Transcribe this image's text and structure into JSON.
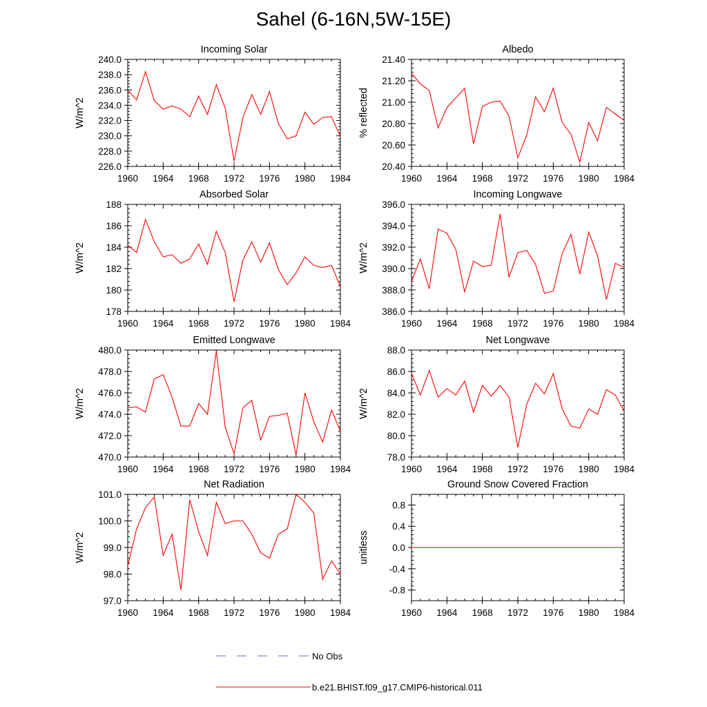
{
  "figure": {
    "title": "Sahel (6-16N,5W-15E)"
  },
  "legend": [
    {
      "label": "No Obs",
      "color": "#5a6fb8",
      "dash": true
    },
    {
      "label": "b.e21.BHIST.f09_g17.CMIP6-historical.011",
      "color": "#ff0000",
      "dash": false
    }
  ],
  "chart_data": [
    {
      "type": "line",
      "title": "Incoming Solar",
      "xlabel": "",
      "ylabel": "W/m^2",
      "xlim": [
        1960,
        1984
      ],
      "ylim": [
        226,
        240
      ],
      "xticks": [
        1960,
        1964,
        1968,
        1972,
        1976,
        1980,
        1984
      ],
      "yticks": [
        "226.0",
        "228.0",
        "230.0",
        "232.0",
        "234.0",
        "236.0",
        "238.0",
        "240.0"
      ],
      "series": [
        {
          "color": "#ff0000",
          "x": [
            1960,
            1961,
            1962,
            1963,
            1964,
            1965,
            1966,
            1967,
            1968,
            1969,
            1970,
            1971,
            1972,
            1973,
            1974,
            1975,
            1976,
            1977,
            1978,
            1979,
            1980,
            1981,
            1982,
            1983,
            1984
          ],
          "values": [
            236.0,
            234.7,
            238.4,
            234.6,
            233.5,
            233.9,
            233.5,
            232.5,
            235.2,
            232.8,
            236.7,
            233.6,
            226.7,
            232.4,
            235.4,
            232.8,
            235.8,
            231.6,
            229.6,
            230.0,
            233.1,
            231.5,
            232.4,
            232.5,
            229.9
          ]
        }
      ]
    },
    {
      "type": "line",
      "title": "Albedo",
      "xlabel": "",
      "ylabel": "% reflected",
      "xlim": [
        1960,
        1984
      ],
      "ylim": [
        20.4,
        21.4
      ],
      "xticks": [
        1960,
        1964,
        1968,
        1972,
        1976,
        1980,
        1984
      ],
      "yticks": [
        "20.40",
        "20.60",
        "20.80",
        "21.00",
        "21.20",
        "21.40"
      ],
      "series": [
        {
          "color": "#ff0000",
          "x": [
            1960,
            1961,
            1962,
            1963,
            1964,
            1965,
            1966,
            1967,
            1968,
            1969,
            1970,
            1971,
            1972,
            1973,
            1974,
            1975,
            1976,
            1977,
            1978,
            1979,
            1980,
            1981,
            1982,
            1983,
            1984
          ],
          "values": [
            21.27,
            21.17,
            21.11,
            20.76,
            20.95,
            21.04,
            21.13,
            20.61,
            20.96,
            21.0,
            21.01,
            20.87,
            20.48,
            20.69,
            21.05,
            20.91,
            21.13,
            20.81,
            20.7,
            20.44,
            20.81,
            20.64,
            20.95,
            20.89,
            20.83
          ]
        }
      ]
    },
    {
      "type": "line",
      "title": "Absorbed Solar",
      "xlabel": "",
      "ylabel": "W/m^2",
      "xlim": [
        1960,
        1984
      ],
      "ylim": [
        178,
        188
      ],
      "xticks": [
        1960,
        1964,
        1968,
        1972,
        1976,
        1980,
        1984
      ],
      "yticks": [
        "178",
        "180",
        "182",
        "184",
        "186",
        "188"
      ],
      "series": [
        {
          "color": "#ff0000",
          "x": [
            1960,
            1961,
            1962,
            1963,
            1964,
            1965,
            1966,
            1967,
            1968,
            1969,
            1970,
            1971,
            1972,
            1973,
            1974,
            1975,
            1976,
            1977,
            1978,
            1979,
            1980,
            1981,
            1982,
            1983,
            1984
          ],
          "values": [
            184.2,
            183.5,
            186.6,
            184.5,
            183.1,
            183.3,
            182.5,
            182.9,
            184.3,
            182.4,
            185.5,
            183.5,
            178.9,
            182.8,
            184.5,
            182.6,
            184.4,
            181.9,
            180.5,
            181.6,
            183.1,
            182.3,
            182.1,
            182.3,
            180.3
          ]
        }
      ]
    },
    {
      "type": "line",
      "title": "Incoming Longwave",
      "xlabel": "",
      "ylabel": "W/m^2",
      "xlim": [
        1960,
        1984
      ],
      "ylim": [
        386,
        396
      ],
      "xticks": [
        1960,
        1964,
        1968,
        1972,
        1976,
        1980,
        1984
      ],
      "yticks": [
        "386.0",
        "388.0",
        "390.0",
        "392.0",
        "394.0",
        "396.0"
      ],
      "series": [
        {
          "color": "#ff0000",
          "x": [
            1960,
            1961,
            1962,
            1963,
            1964,
            1965,
            1966,
            1967,
            1968,
            1969,
            1970,
            1971,
            1972,
            1973,
            1974,
            1975,
            1976,
            1977,
            1978,
            1979,
            1980,
            1981,
            1982,
            1983,
            1984
          ],
          "values": [
            388.8,
            390.9,
            388.1,
            393.7,
            393.3,
            391.8,
            387.8,
            390.7,
            390.2,
            390.3,
            395.1,
            389.2,
            391.5,
            391.7,
            390.4,
            387.7,
            387.9,
            391.4,
            393.2,
            389.5,
            393.4,
            391.2,
            387.1,
            390.5,
            390.1
          ]
        }
      ]
    },
    {
      "type": "line",
      "title": "Emitted Longwave",
      "xlabel": "",
      "ylabel": "W/m^2",
      "xlim": [
        1960,
        1984
      ],
      "ylim": [
        470,
        480
      ],
      "xticks": [
        1960,
        1964,
        1968,
        1972,
        1976,
        1980,
        1984
      ],
      "yticks": [
        "470.0",
        "472.0",
        "474.0",
        "476.0",
        "478.0",
        "480.0"
      ],
      "series": [
        {
          "color": "#ff0000",
          "x": [
            1960,
            1961,
            1962,
            1963,
            1964,
            1965,
            1966,
            1967,
            1968,
            1969,
            1970,
            1971,
            1972,
            1973,
            1974,
            1975,
            1976,
            1977,
            1978,
            1979,
            1980,
            1981,
            1982,
            1983,
            1984
          ],
          "values": [
            474.6,
            474.7,
            474.2,
            477.3,
            477.7,
            475.6,
            472.9,
            472.9,
            475.0,
            474.0,
            479.9,
            472.8,
            470.3,
            474.6,
            475.3,
            471.6,
            473.8,
            473.9,
            474.1,
            470.2,
            476.0,
            473.3,
            471.4,
            474.4,
            472.4
          ]
        }
      ]
    },
    {
      "type": "line",
      "title": "Net Longwave",
      "xlabel": "",
      "ylabel": "W/m^2",
      "xlim": [
        1960,
        1984
      ],
      "ylim": [
        78,
        88
      ],
      "xticks": [
        1960,
        1964,
        1968,
        1972,
        1976,
        1980,
        1984
      ],
      "yticks": [
        "78.0",
        "80.0",
        "82.0",
        "84.0",
        "86.0",
        "88.0"
      ],
      "series": [
        {
          "color": "#ff0000",
          "x": [
            1960,
            1961,
            1962,
            1963,
            1964,
            1965,
            1966,
            1967,
            1968,
            1969,
            1970,
            1971,
            1972,
            1973,
            1974,
            1975,
            1976,
            1977,
            1978,
            1979,
            1980,
            1981,
            1982,
            1983,
            1984
          ],
          "values": [
            85.8,
            83.8,
            86.1,
            83.6,
            84.4,
            83.8,
            85.1,
            82.2,
            84.7,
            83.7,
            84.7,
            83.6,
            78.9,
            82.9,
            84.9,
            83.9,
            85.8,
            82.5,
            80.9,
            80.7,
            82.5,
            82.0,
            84.3,
            83.8,
            82.3
          ]
        }
      ]
    },
    {
      "type": "line",
      "title": "Net Radiation",
      "xlabel": "",
      "ylabel": "W/m^2",
      "xlim": [
        1960,
        1984
      ],
      "ylim": [
        97,
        101
      ],
      "xticks": [
        1960,
        1964,
        1968,
        1972,
        1976,
        1980,
        1984
      ],
      "yticks": [
        "97.0",
        "98.0",
        "99.0",
        "100.0",
        "101.0"
      ],
      "series": [
        {
          "color": "#ff0000",
          "x": [
            1960,
            1961,
            1962,
            1963,
            1964,
            1965,
            1966,
            1967,
            1968,
            1969,
            1970,
            1971,
            1972,
            1973,
            1974,
            1975,
            1976,
            1977,
            1978,
            1979,
            1980,
            1981,
            1982,
            1983,
            1984
          ],
          "values": [
            98.3,
            99.7,
            100.5,
            100.9,
            98.7,
            99.5,
            97.4,
            100.8,
            99.6,
            98.7,
            100.7,
            99.9,
            100.0,
            100.0,
            99.5,
            98.8,
            98.6,
            99.5,
            99.7,
            101.0,
            100.7,
            100.3,
            97.8,
            98.5,
            98.0
          ]
        }
      ]
    },
    {
      "type": "line",
      "title": "Ground Snow Covered Fraction",
      "xlabel": "",
      "ylabel": "unitless",
      "xlim": [
        1960,
        1984
      ],
      "ylim": [
        -1.0,
        1.0
      ],
      "xticks": [
        1960,
        1964,
        1968,
        1972,
        1976,
        1980,
        1984
      ],
      "yticks": [
        "-0.8",
        "-0.4",
        "0.0",
        "0.4",
        "0.8"
      ],
      "ytick_values": [
        -0.8,
        -0.4,
        0.0,
        0.4,
        0.8
      ],
      "series": [
        {
          "color": "#ff0000",
          "x": [
            1960,
            1984
          ],
          "values": [
            0.0,
            0.0
          ]
        }
      ]
    }
  ]
}
